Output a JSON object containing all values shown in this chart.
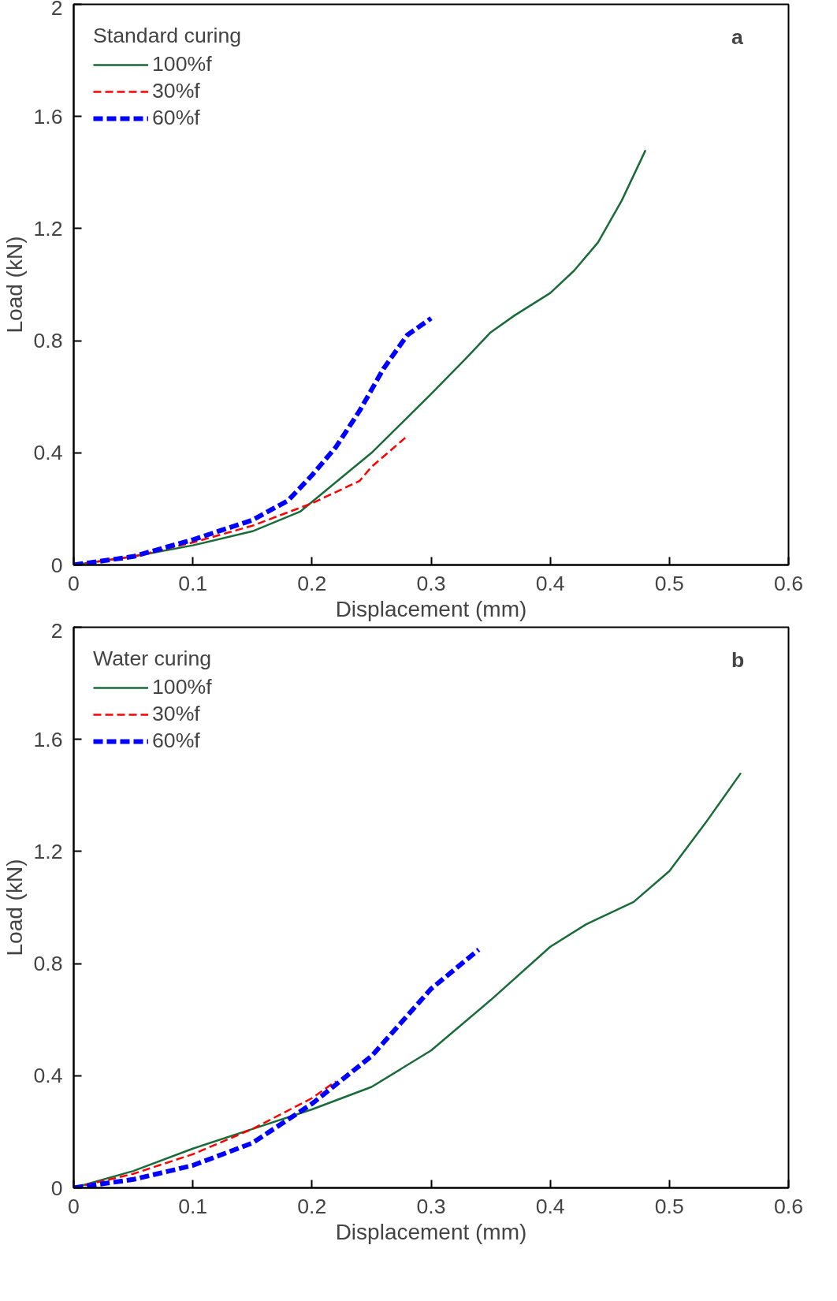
{
  "chart_data": [
    {
      "type": "line",
      "xlabel": "Displacement (mm)",
      "ylabel": "Load (kN)",
      "legend_title": "Standard curing",
      "annotations": [
        "a"
      ],
      "xlim": [
        0,
        0.6
      ],
      "ylim": [
        0,
        2
      ],
      "xticks": [
        0,
        0.1,
        0.2,
        0.3,
        0.4,
        0.5,
        0.6
      ],
      "yticks": [
        0,
        0.4,
        0.8,
        1.2,
        1.6,
        2
      ],
      "grid": false,
      "legend": "top left",
      "series": [
        {
          "name": "100%f",
          "color": "#1a6b3a",
          "line_style": "solid",
          "x": [
            0,
            0.05,
            0.1,
            0.15,
            0.19,
            0.25,
            0.3,
            0.33,
            0.35,
            0.37,
            0.4,
            0.42,
            0.44,
            0.46,
            0.48
          ],
          "values": [
            0,
            0.03,
            0.07,
            0.12,
            0.19,
            0.4,
            0.61,
            0.74,
            0.83,
            0.89,
            0.97,
            1.05,
            1.15,
            1.3,
            1.48
          ]
        },
        {
          "name": "30%f",
          "color": "#ff0000",
          "line_style": "dashed",
          "x": [
            0,
            0.05,
            0.1,
            0.15,
            0.2,
            0.24,
            0.25,
            0.28
          ],
          "values": [
            0,
            0.03,
            0.08,
            0.14,
            0.22,
            0.3,
            0.35,
            0.46
          ]
        },
        {
          "name": "60%f",
          "color": "#0000ff",
          "line_style": "dashed",
          "x": [
            0,
            0.05,
            0.1,
            0.15,
            0.18,
            0.2,
            0.22,
            0.24,
            0.26,
            0.28,
            0.3
          ],
          "values": [
            0,
            0.03,
            0.09,
            0.16,
            0.23,
            0.32,
            0.42,
            0.55,
            0.7,
            0.82,
            0.88
          ]
        }
      ]
    },
    {
      "type": "line",
      "xlabel": "Displacement (mm)",
      "ylabel": "Load (kN)",
      "legend_title": "Water curing",
      "annotations": [
        "b"
      ],
      "xlim": [
        0,
        0.6
      ],
      "ylim": [
        0,
        2
      ],
      "xticks": [
        0,
        0.1,
        0.2,
        0.3,
        0.4,
        0.5,
        0.6
      ],
      "yticks": [
        0,
        0.4,
        0.8,
        1.2,
        1.6,
        2
      ],
      "grid": false,
      "legend": "top left",
      "series": [
        {
          "name": "100%f",
          "color": "#1a6b3a",
          "line_style": "solid",
          "x": [
            0,
            0.05,
            0.1,
            0.15,
            0.2,
            0.25,
            0.3,
            0.35,
            0.4,
            0.43,
            0.47,
            0.5,
            0.53,
            0.56
          ],
          "values": [
            0,
            0.06,
            0.14,
            0.21,
            0.28,
            0.36,
            0.49,
            0.67,
            0.86,
            0.94,
            1.02,
            1.13,
            1.3,
            1.48
          ]
        },
        {
          "name": "30%f",
          "color": "#ff0000",
          "line_style": "dashed",
          "x": [
            0,
            0.05,
            0.1,
            0.15,
            0.2,
            0.22
          ],
          "values": [
            0,
            0.05,
            0.12,
            0.21,
            0.32,
            0.38
          ]
        },
        {
          "name": "60%f",
          "color": "#0000ff",
          "line_style": "dashed",
          "x": [
            0,
            0.05,
            0.1,
            0.15,
            0.2,
            0.25,
            0.3,
            0.34
          ],
          "values": [
            0,
            0.03,
            0.08,
            0.16,
            0.3,
            0.47,
            0.71,
            0.85
          ]
        }
      ]
    }
  ]
}
